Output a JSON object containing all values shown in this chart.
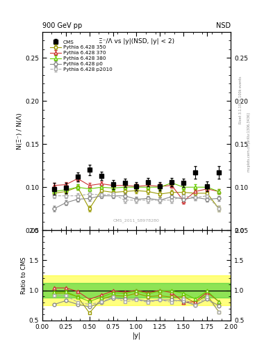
{
  "title_top": "900 GeV pp",
  "title_right": "NSD",
  "plot_title": "Ξ⁻/Λ vs |y|(NSD, |y| < 2)",
  "ylabel_main": "N(Ξ⁻) / N(Λ)",
  "ylabel_ratio": "Ratio to CMS",
  "xlabel": "|y|",
  "watermark": "CMS_2011_S8978280",
  "rivet_label": "Rivet 3.1.10, ≥ 100k events",
  "mcplots_label": "mcplots.cern.ch [arXiv:1306.3436]",
  "xlim": [
    0,
    2
  ],
  "ylim_main": [
    0.05,
    0.28
  ],
  "ylim_ratio": [
    0.5,
    2.0
  ],
  "yticks_main": [
    0.05,
    0.1,
    0.15,
    0.2,
    0.25
  ],
  "yticks_ratio": [
    0.5,
    1.0,
    1.5,
    2.0
  ],
  "cms_x": [
    0.125,
    0.25,
    0.375,
    0.5,
    0.625,
    0.75,
    0.875,
    1.0,
    1.125,
    1.25,
    1.375,
    1.5,
    1.625,
    1.75,
    1.875
  ],
  "cms_y": [
    0.098,
    0.099,
    0.112,
    0.12,
    0.113,
    0.103,
    0.105,
    0.101,
    0.106,
    0.101,
    0.106,
    0.105,
    0.117,
    0.101,
    0.117
  ],
  "cms_yerr": [
    0.007,
    0.006,
    0.005,
    0.006,
    0.005,
    0.005,
    0.005,
    0.005,
    0.005,
    0.005,
    0.005,
    0.005,
    0.007,
    0.006,
    0.007
  ],
  "p350_x": [
    0.125,
    0.25,
    0.375,
    0.5,
    0.625,
    0.75,
    0.875,
    1.0,
    1.125,
    1.25,
    1.375,
    1.5,
    1.625,
    1.75,
    1.875
  ],
  "p350_y": [
    0.093,
    0.095,
    0.1,
    0.075,
    0.096,
    0.094,
    0.095,
    0.096,
    0.095,
    0.092,
    0.094,
    0.094,
    0.093,
    0.093,
    0.075
  ],
  "p350_yerr": [
    0.003,
    0.003,
    0.003,
    0.003,
    0.003,
    0.003,
    0.003,
    0.003,
    0.003,
    0.003,
    0.003,
    0.003,
    0.003,
    0.003,
    0.003
  ],
  "p370_x": [
    0.125,
    0.25,
    0.375,
    0.5,
    0.625,
    0.75,
    0.875,
    1.0,
    1.125,
    1.25,
    1.375,
    1.5,
    1.625,
    1.75,
    1.875
  ],
  "p370_y": [
    0.102,
    0.103,
    0.11,
    0.102,
    0.104,
    0.102,
    0.102,
    0.101,
    0.102,
    0.101,
    0.102,
    0.084,
    0.095,
    0.098,
    0.095
  ],
  "p370_yerr": [
    0.003,
    0.003,
    0.003,
    0.003,
    0.003,
    0.003,
    0.003,
    0.003,
    0.003,
    0.003,
    0.003,
    0.003,
    0.003,
    0.003,
    0.003
  ],
  "p380_x": [
    0.125,
    0.25,
    0.375,
    0.5,
    0.625,
    0.75,
    0.875,
    1.0,
    1.125,
    1.25,
    1.375,
    1.5,
    1.625,
    1.75,
    1.875
  ],
  "p380_y": [
    0.095,
    0.097,
    0.1,
    0.098,
    0.1,
    0.099,
    0.1,
    0.1,
    0.1,
    0.1,
    0.105,
    0.1,
    0.1,
    0.1,
    0.095
  ],
  "p380_yerr": [
    0.003,
    0.003,
    0.003,
    0.003,
    0.003,
    0.003,
    0.003,
    0.003,
    0.003,
    0.003,
    0.003,
    0.003,
    0.003,
    0.003,
    0.003
  ],
  "pp0_x": [
    0.125,
    0.25,
    0.375,
    0.5,
    0.625,
    0.75,
    0.875,
    1.0,
    1.125,
    1.25,
    1.375,
    1.5,
    1.625,
    1.75,
    1.875
  ],
  "pp0_y": [
    0.075,
    0.082,
    0.086,
    0.087,
    0.09,
    0.09,
    0.09,
    0.086,
    0.087,
    0.085,
    0.089,
    0.086,
    0.088,
    0.086,
    0.087
  ],
  "pp0_yerr": [
    0.003,
    0.003,
    0.003,
    0.003,
    0.003,
    0.003,
    0.003,
    0.003,
    0.003,
    0.003,
    0.003,
    0.003,
    0.003,
    0.003,
    0.003
  ],
  "pp2010_x": [
    0.125,
    0.25,
    0.375,
    0.5,
    0.625,
    0.75,
    0.875,
    1.0,
    1.125,
    1.25,
    1.375,
    1.5,
    1.625,
    1.75,
    1.875
  ],
  "pp2010_y": [
    0.09,
    0.09,
    0.09,
    0.092,
    0.091,
    0.092,
    0.085,
    0.085,
    0.085,
    0.085,
    0.085,
    0.09,
    0.088,
    0.09,
    0.075
  ],
  "pp2010_yerr": [
    0.003,
    0.003,
    0.003,
    0.003,
    0.003,
    0.003,
    0.003,
    0.003,
    0.003,
    0.003,
    0.003,
    0.003,
    0.003,
    0.003,
    0.003
  ],
  "color_350": "#999900",
  "color_370": "#cc3333",
  "color_380": "#66cc00",
  "color_p0": "#888888",
  "color_p2010": "#aaaaaa",
  "band_yellow": "#ffff00",
  "band_green": "#33cc33",
  "band_yellow_lo": 0.75,
  "band_yellow_hi": 1.25,
  "band_green_lo": 0.88,
  "band_green_hi": 1.12,
  "cms_color": "#000000"
}
